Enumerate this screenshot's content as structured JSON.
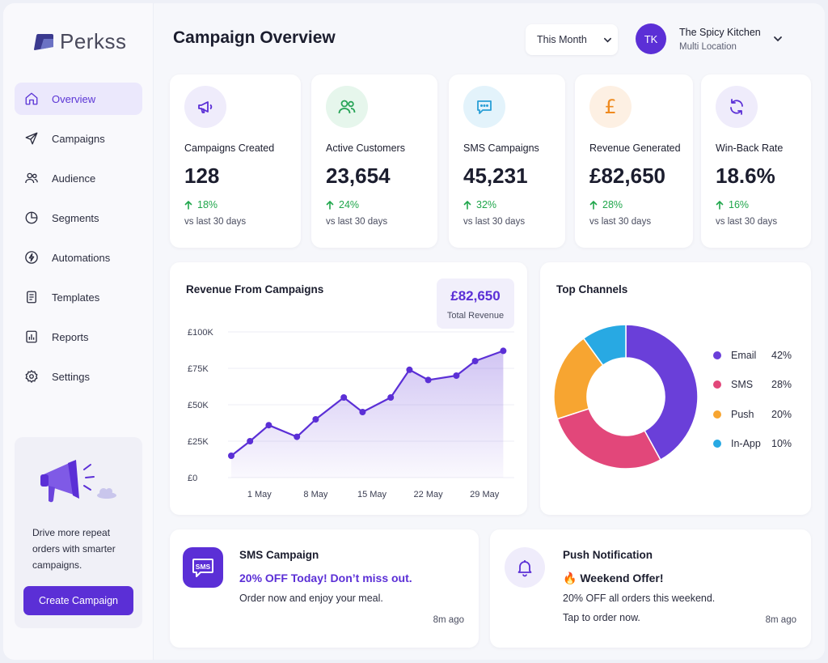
{
  "brand": {
    "name": "Perkss"
  },
  "header": {
    "title": "Campaign Overview",
    "date_range": "This Month",
    "account": {
      "initials": "TK",
      "name": "The Spicy Kitchen",
      "subtitle": "Multi Location"
    }
  },
  "sidebar": {
    "items": [
      {
        "label": "Overview",
        "icon": "home-icon",
        "active": true
      },
      {
        "label": "Campaigns",
        "icon": "send-icon",
        "active": false
      },
      {
        "label": "Audience",
        "icon": "users-icon",
        "active": false
      },
      {
        "label": "Segments",
        "icon": "pie-icon",
        "active": false
      },
      {
        "label": "Automations",
        "icon": "bolt-icon",
        "active": false
      },
      {
        "label": "Templates",
        "icon": "document-icon",
        "active": false
      },
      {
        "label": "Reports",
        "icon": "bar-chart-icon",
        "active": false
      },
      {
        "label": "Settings",
        "icon": "gear-icon",
        "active": false
      }
    ],
    "promo": {
      "text": "Drive more repeat orders with smarter campaigns.",
      "button": "Create Campaign"
    }
  },
  "kpis": [
    {
      "label": "Campaigns Created",
      "value": "128",
      "delta": "18%",
      "sub": "vs last 30 days",
      "icon": "megaphone-icon",
      "icon_bg": "#efecfb",
      "icon_color": "#5b2fd6"
    },
    {
      "label": "Active Customers",
      "value": "23,654",
      "delta": "24%",
      "sub": "vs last 30 days",
      "icon": "users-icon",
      "icon_bg": "#e6f6ec",
      "icon_color": "#27a457"
    },
    {
      "label": "SMS Campaigns",
      "value": "45,231",
      "delta": "32%",
      "sub": "vs last 30 days",
      "icon": "chat-icon",
      "icon_bg": "#e3f3fb",
      "icon_color": "#2a9fd6"
    },
    {
      "label": "Revenue Generated",
      "value": "£82,650",
      "delta": "28%",
      "sub": "vs last 30 days",
      "icon": "pound-icon",
      "icon_bg": "#fdf0e3",
      "icon_color": "#ef8a1e"
    },
    {
      "label": "Win-Back Rate",
      "value": "18.6%",
      "delta": "16%",
      "sub": "vs last 30 days",
      "icon": "refresh-icon",
      "icon_bg": "#efecfb",
      "icon_color": "#5b2fd6"
    }
  ],
  "revenue": {
    "title": "Revenue From Campaigns",
    "total_value": "£82,650",
    "total_label": "Total Revenue"
  },
  "channels": {
    "title": "Top Channels"
  },
  "chart_data": [
    {
      "type": "line",
      "title": "Revenue From Campaigns",
      "x_ticks": [
        "1 May",
        "8 May",
        "15 May",
        "22 May",
        "29 May"
      ],
      "y_ticks": [
        "£0",
        "£25K",
        "£50K",
        "£75K",
        "£100K"
      ],
      "ylim": [
        0,
        100000
      ],
      "xlim": [
        1,
        31
      ],
      "grid": true,
      "area_fill": true,
      "color": "#5b2fd6",
      "x": [
        1,
        3,
        5,
        8,
        10,
        13,
        15,
        18,
        20,
        22,
        25,
        27,
        30
      ],
      "values": [
        15000,
        25000,
        36000,
        28000,
        40000,
        55000,
        45000,
        55000,
        74000,
        67000,
        70000,
        80000,
        87000
      ]
    },
    {
      "type": "pie",
      "title": "Top Channels",
      "donut": true,
      "legend_position": "right",
      "labels": [
        "Email",
        "SMS",
        "Push",
        "In-App"
      ],
      "values": [
        42,
        28,
        20,
        10
      ],
      "display_values": [
        "42%",
        "28%",
        "20%",
        "10%"
      ],
      "colors": [
        "#6a3fd9",
        "#e2477a",
        "#f7a531",
        "#28a9e3"
      ]
    }
  ],
  "messages": [
    {
      "title": "SMS Campaign",
      "line1": "20% OFF Today! Don’t miss out.",
      "line2": "Order now and enjoy your meal.",
      "line3": "",
      "time": "8m ago",
      "icon": "sms-icon"
    },
    {
      "title": "Push Notification",
      "line1": "🔥 Weekend Offer!",
      "line2": "20% OFF all orders this weekend.",
      "line3": "Tap to order now.",
      "time": "8m ago",
      "icon": "bell-icon"
    }
  ]
}
